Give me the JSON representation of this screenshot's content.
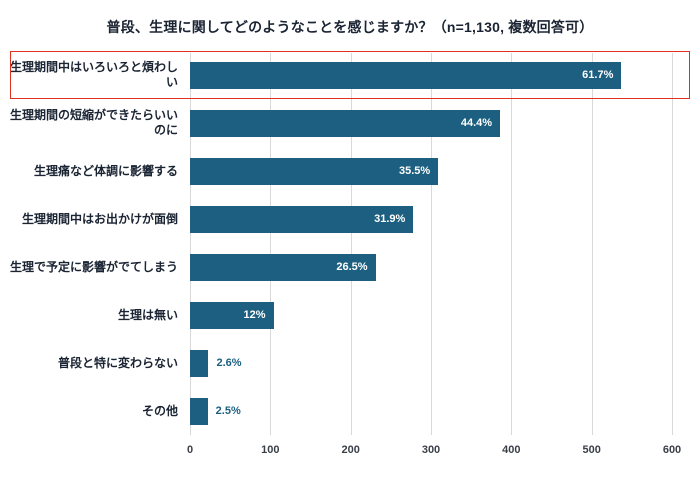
{
  "chart_data": {
    "type": "bar",
    "orientation": "horizontal",
    "title": "普段、生理に関してどのようなことを感じますか？（n=1,130, 複数回答可）",
    "categories": [
      "生理期間中はいろいろと煩わしい",
      "生理期間の短縮ができたらいいのに",
      "生理痛など体調に影響する",
      "生理期間中はお出かけが面倒",
      "生理で予定に影響がでてしまう",
      "生理は無い",
      "普段と特に変わらない",
      "その他"
    ],
    "percent_labels": [
      "61.7%",
      "44.4%",
      "35.5%",
      "31.9%",
      "26.5%",
      "12%",
      "2.6%",
      "2.5%"
    ],
    "percents": [
      61.7,
      44.4,
      35.5,
      31.9,
      26.5,
      12,
      2.6,
      2.5
    ],
    "values": [
      537,
      386,
      309,
      278,
      231,
      104,
      23,
      22
    ],
    "x_ticks": [
      "0",
      "100",
      "200",
      "300",
      "400",
      "500",
      "600"
    ],
    "xlim": [
      0,
      600
    ],
    "xmax": 600,
    "highlight_index": 0,
    "bar_color": "#1c5f80",
    "highlight_color": "#e0301e",
    "label_inside_color": "#ffffff",
    "label_outside_color": "#1c5f80",
    "grid": "vertical",
    "legend": "none"
  }
}
